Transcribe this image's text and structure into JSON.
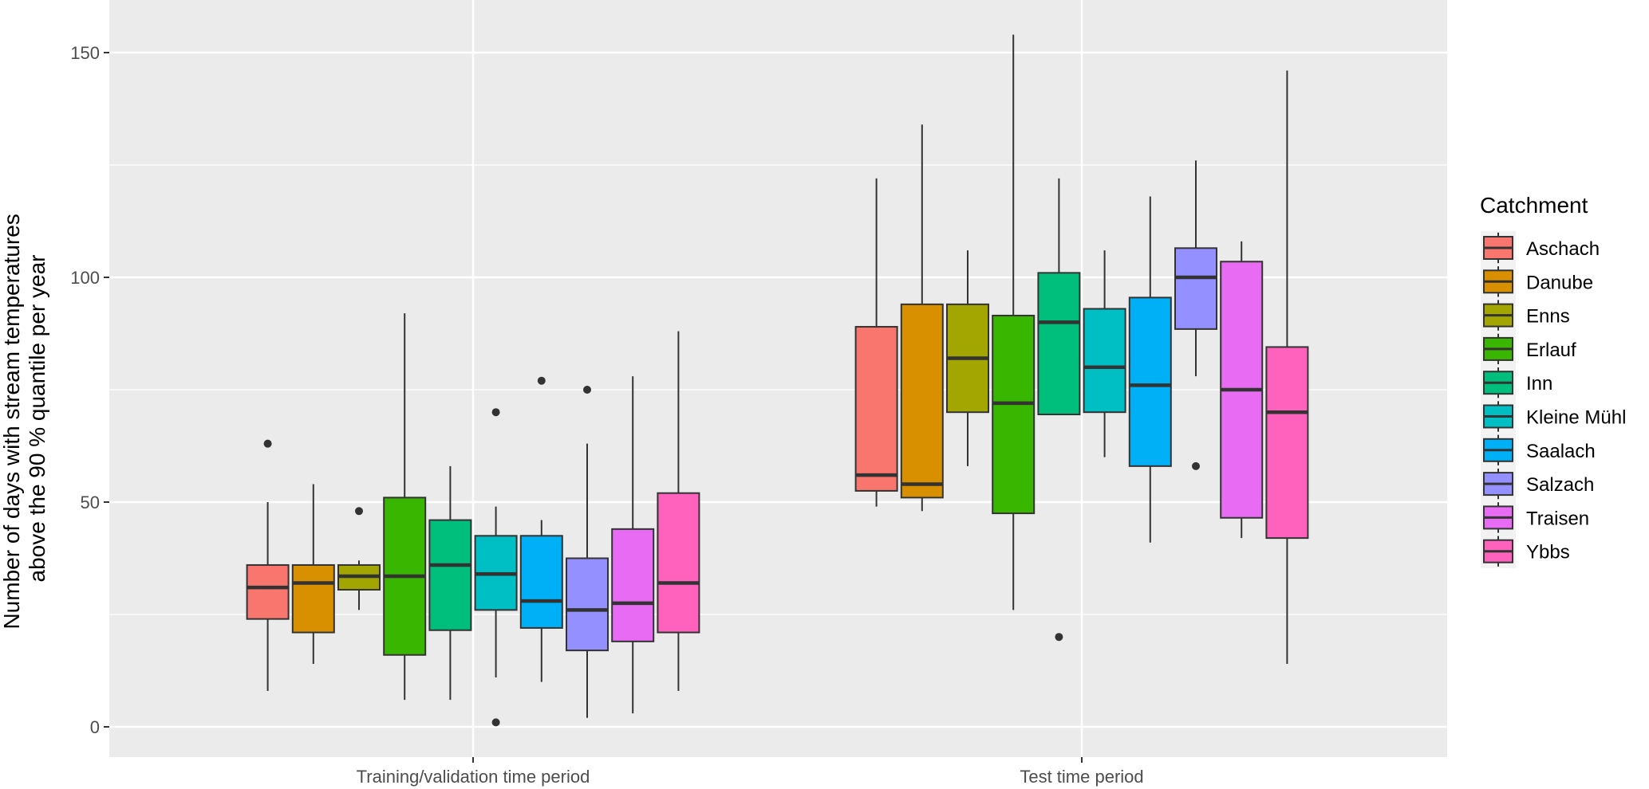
{
  "chart_data": {
    "type": "boxplot",
    "xlabel": "",
    "ylabel": "Number of days with stream temperatures above the 90 % quantile per year",
    "ylabel_lines": [
      "Number of days with stream temperatures",
      "above the 90 % quantile per year"
    ],
    "ylim": [
      -6,
      160
    ],
    "yticks": [
      0,
      50,
      100,
      150
    ],
    "ytick_labels": [
      "0",
      "50",
      "100",
      "150"
    ],
    "grid": true,
    "legend_title": "Catchment",
    "legend_position": "right",
    "groups": [
      "Training/validation time period",
      "Test time period"
    ],
    "series": [
      {
        "name": "Aschach",
        "color": "#F8766D",
        "boxes": [
          {
            "min": 8,
            "q1": 24,
            "median": 31,
            "q3": 36,
            "max": 50,
            "outliers": [
              63
            ]
          },
          {
            "min": 49,
            "q1": 52.5,
            "median": 56,
            "q3": 89,
            "max": 122,
            "outliers": []
          }
        ]
      },
      {
        "name": "Danube",
        "color": "#D89000",
        "boxes": [
          {
            "min": 14,
            "q1": 21,
            "median": 32,
            "q3": 36,
            "max": 54,
            "outliers": []
          },
          {
            "min": 48,
            "q1": 51,
            "median": 54,
            "q3": 94,
            "max": 134,
            "outliers": []
          }
        ]
      },
      {
        "name": "Enns",
        "color": "#A3A500",
        "boxes": [
          {
            "min": 26,
            "q1": 30.5,
            "median": 33.5,
            "q3": 36,
            "max": 37,
            "outliers": [
              48
            ]
          },
          {
            "min": 58,
            "q1": 70,
            "median": 82,
            "q3": 94,
            "max": 106,
            "outliers": []
          }
        ]
      },
      {
        "name": "Erlauf",
        "color": "#39B600",
        "boxes": [
          {
            "min": 6,
            "q1": 16,
            "median": 33.5,
            "q3": 51,
            "max": 92,
            "outliers": []
          },
          {
            "min": 26,
            "q1": 47.5,
            "median": 72,
            "q3": 91.5,
            "max": 154,
            "outliers": []
          }
        ]
      },
      {
        "name": "Inn",
        "color": "#00BF7D",
        "boxes": [
          {
            "min": 6,
            "q1": 21.5,
            "median": 36,
            "q3": 46,
            "max": 58,
            "outliers": []
          },
          {
            "min": 69.5,
            "q1": 69.5,
            "median": 90,
            "q3": 101,
            "max": 122,
            "outliers": [
              20
            ]
          }
        ]
      },
      {
        "name": "Kleine Mühl",
        "color": "#00BFC4",
        "boxes": [
          {
            "min": 11,
            "q1": 26,
            "median": 34,
            "q3": 42.5,
            "max": 49,
            "outliers": [
              70,
              1
            ]
          },
          {
            "min": 60,
            "q1": 70,
            "median": 80,
            "q3": 93,
            "max": 106,
            "outliers": []
          }
        ]
      },
      {
        "name": "Saalach",
        "color": "#00B0F6",
        "boxes": [
          {
            "min": 10,
            "q1": 22,
            "median": 28,
            "q3": 42.5,
            "max": 46,
            "outliers": [
              77
            ]
          },
          {
            "min": 41,
            "q1": 58,
            "median": 76,
            "q3": 95.5,
            "max": 118,
            "outliers": []
          }
        ]
      },
      {
        "name": "Salzach",
        "color": "#9590FF",
        "boxes": [
          {
            "min": 2,
            "q1": 17,
            "median": 26,
            "q3": 37.5,
            "max": 63,
            "outliers": [
              75
            ]
          },
          {
            "min": 78,
            "q1": 88.5,
            "median": 100,
            "q3": 106.5,
            "max": 126,
            "outliers": [
              58
            ]
          }
        ]
      },
      {
        "name": "Traisen",
        "color": "#E76BF3",
        "boxes": [
          {
            "min": 3,
            "q1": 19,
            "median": 27.5,
            "q3": 44,
            "max": 78,
            "outliers": []
          },
          {
            "min": 42,
            "q1": 46.5,
            "median": 75,
            "q3": 103.5,
            "max": 108,
            "outliers": []
          }
        ]
      },
      {
        "name": "Ybbs",
        "color": "#FF62BC",
        "boxes": [
          {
            "min": 8,
            "q1": 21,
            "median": 32,
            "q3": 52,
            "max": 88,
            "outliers": []
          },
          {
            "min": 14,
            "q1": 42,
            "median": 70,
            "q3": 84.5,
            "max": 146,
            "outliers": []
          }
        ]
      }
    ]
  }
}
